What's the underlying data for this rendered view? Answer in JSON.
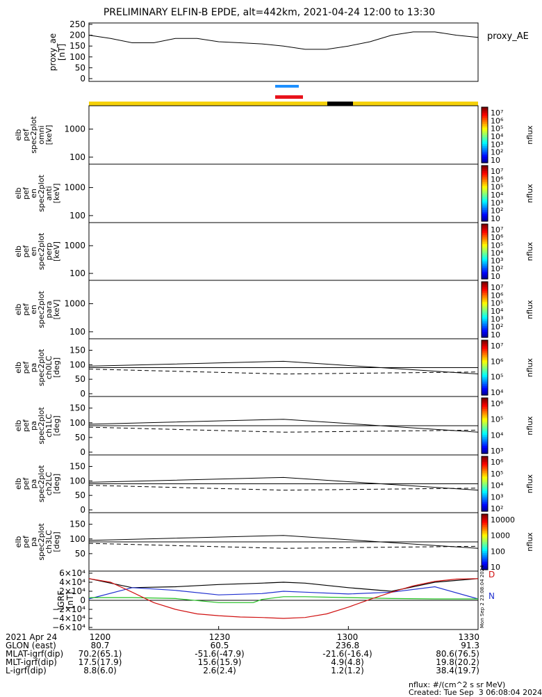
{
  "title": "PRELIMINARY ELFIN-B EPDE, alt=442km, 2021-04-24 12:00 to 13:30",
  "panels": {
    "ae": {
      "ylabel": [
        "proxy_ae",
        "[nT]"
      ],
      "ticks": [
        "250",
        "200",
        "150",
        "100",
        "50",
        "0"
      ],
      "legend": "proxy_AE"
    },
    "omni": {
      "ylabel": [
        "elb",
        "pef",
        "spec2plot",
        "omni",
        "[keV]"
      ],
      "ticks": [
        "1000",
        "100"
      ],
      "cbar_ticks": [
        "10⁷",
        "10⁶",
        "10⁵",
        "10⁴",
        "10³",
        "10²",
        "10"
      ],
      "cbar_label": "nflux"
    },
    "anti": {
      "ylabel": [
        "elb",
        "pef",
        "en",
        "spec2plot",
        "anti",
        "[keV]"
      ],
      "ticks": [
        "1000",
        "100"
      ],
      "cbar_ticks": [
        "10⁷",
        "10⁶",
        "10⁵",
        "10⁴",
        "10³",
        "10²",
        "10"
      ],
      "cbar_label": "nflux"
    },
    "perp": {
      "ylabel": [
        "elb",
        "pef",
        "en",
        "spec2plot",
        "perp",
        "[keV]"
      ],
      "ticks": [
        "1000",
        "100"
      ],
      "cbar_ticks": [
        "10⁷",
        "10⁶",
        "10⁵",
        "10⁴",
        "10³",
        "10²",
        "10"
      ],
      "cbar_label": "nflux"
    },
    "para": {
      "ylabel": [
        "elb",
        "pef",
        "en",
        "spec2plot",
        "para",
        "[keV]"
      ],
      "ticks": [
        "1000",
        "100"
      ],
      "cbar_ticks": [
        "10⁷",
        "10⁶",
        "10⁵",
        "10⁴",
        "10³",
        "10²",
        "10"
      ],
      "cbar_label": "nflux"
    },
    "ch0": {
      "ylabel": [
        "elb",
        "pef",
        "pa",
        "spec2plot",
        "ch0LC",
        "[deg]"
      ],
      "ticks": [
        "150",
        "100",
        "50",
        "0"
      ],
      "cbar_ticks": [
        "10⁷",
        "10⁶",
        "10⁵",
        "10⁴"
      ],
      "cbar_label": "nflux"
    },
    "ch1": {
      "ylabel": [
        "elb",
        "pef",
        "pa",
        "spec2plot",
        "ch1LC",
        "[deg]"
      ],
      "ticks": [
        "150",
        "100",
        "50",
        "0"
      ],
      "cbar_ticks": [
        "10⁶",
        "10⁵",
        "10⁴",
        "10³"
      ],
      "cbar_label": "nflux"
    },
    "ch2": {
      "ylabel": [
        "elb",
        "pef",
        "pa",
        "spec2plot",
        "ch2LC",
        "[deg]"
      ],
      "ticks": [
        "150",
        "100",
        "50",
        "0"
      ],
      "cbar_ticks": [
        "10⁶",
        "10⁵",
        "10⁴",
        "10³",
        "10²"
      ],
      "cbar_label": "nflux"
    },
    "ch3": {
      "ylabel": [
        "elb",
        "pef",
        "pa",
        "spec2plot",
        "ch3LC",
        "[deg]"
      ],
      "ticks": [
        "150",
        "100",
        "50"
      ],
      "cbar_ticks": [
        "10000",
        "1000",
        "100",
        "10"
      ],
      "cbar_label": "nflux"
    },
    "igrf": {
      "ylabel": [
        "IGRF",
        "[nT]"
      ],
      "ticks": [
        "6×10⁴",
        "4×10⁴",
        "2×10⁴",
        "0",
        "−2×10⁴",
        "−4×10⁴",
        "−6×10⁴"
      ],
      "legend_d": "D",
      "legend_n": "N",
      "stamp": "Mon Sep 2 23:08:04 2024"
    }
  },
  "chart_data": {
    "type": "line",
    "proxy_ae": {
      "x_min": [
        0,
        5,
        10,
        15,
        20,
        25,
        30,
        35,
        40,
        45,
        50,
        55,
        60,
        65,
        70,
        75,
        80,
        85,
        90
      ],
      "y_nT": [
        200,
        185,
        165,
        165,
        185,
        185,
        170,
        165,
        160,
        150,
        135,
        135,
        150,
        170,
        200,
        215,
        215,
        200,
        190
      ]
    },
    "igrf_D": {
      "x_min": [
        0,
        5,
        10,
        15,
        20,
        25,
        30,
        35,
        40,
        45,
        50,
        55,
        60,
        65,
        70,
        75,
        80,
        85,
        90
      ],
      "y_nT": [
        48000,
        40000,
        18000,
        -5000,
        -20000,
        -30000,
        -34000,
        -37000,
        -38000,
        -40000,
        -38000,
        -30000,
        -15000,
        2000,
        18000,
        32000,
        42000,
        47000,
        48000
      ]
    },
    "igrf_N": {
      "x_min": [
        0,
        10,
        20,
        30,
        40,
        45,
        50,
        60,
        70,
        80,
        90
      ],
      "y_nT": [
        3000,
        28000,
        22000,
        12000,
        15000,
        20000,
        18000,
        14000,
        18000,
        30000,
        3000
      ]
    },
    "igrf_black": {
      "x_min": [
        0,
        10,
        20,
        30,
        40,
        45,
        50,
        60,
        70,
        80,
        90
      ],
      "y_nT": [
        48000,
        28000,
        30000,
        35000,
        38000,
        40000,
        38000,
        28000,
        20000,
        40000,
        48000
      ]
    },
    "igrf_green": {
      "x_min": [
        0,
        10,
        20,
        30,
        38,
        40,
        45,
        50,
        60,
        70,
        80,
        90
      ],
      "y_nT": [
        6000,
        6000,
        4000,
        -5000,
        -5000,
        2000,
        8000,
        8000,
        6000,
        4000,
        3000,
        3000
      ]
    },
    "igrf_ylim": [
      -60000,
      60000
    ],
    "ae_ylim": [
      0,
      250
    ]
  },
  "footer": {
    "rows": [
      [
        "2021 Apr 24",
        "1200",
        "1230",
        "1300",
        "1330"
      ],
      [
        "GLON (east)",
        "80.7",
        "60.5",
        "236.8",
        "91.3"
      ],
      [
        "MLAT-igrf(dip)",
        "70.2(65.1)",
        "-51.6(-47.9)",
        "-21.6(-16.4)",
        "80.6(76.5)"
      ],
      [
        "MLT-igrf(dip)",
        "17.5(17.9)",
        "15.6(15.9)",
        "4.9(4.8)",
        "19.8(20.2)"
      ],
      [
        "L-igrf(dip)",
        "8.8(6.0)",
        "2.6(2.4)",
        "1.2(1.2)",
        "38.4(19.7)"
      ]
    ],
    "units": "nflux: #/(cm^2 s sr MeV)",
    "created": "Created: Tue Sep  3 06:08:04 2024"
  }
}
